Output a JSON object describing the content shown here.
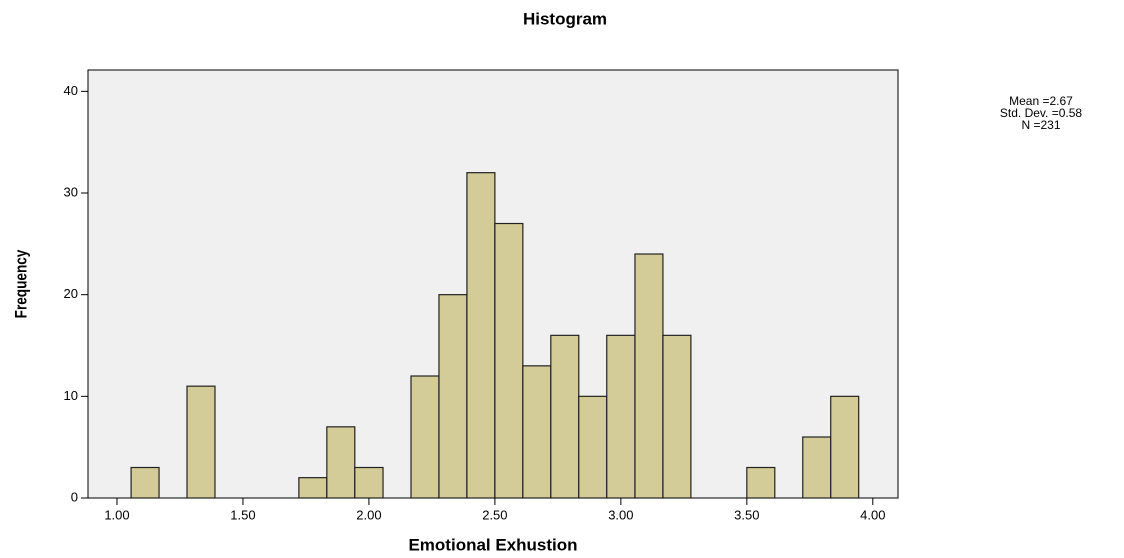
{
  "chart_data": {
    "type": "histogram",
    "title": "Histogram",
    "x_label": "Emotional Exhustion",
    "y_label": "Frequency",
    "annotations": [
      "Mean =2.67",
      "Std. Dev. =0.58",
      "N =231"
    ],
    "bins": [
      1.056,
      1.167,
      1.278,
      1.389,
      1.5,
      1.611,
      1.722,
      1.833,
      1.944,
      2.056,
      2.167,
      2.278,
      2.389,
      2.5,
      2.611,
      2.722,
      2.833,
      2.944,
      3.056,
      3.167,
      3.278,
      3.389,
      3.5,
      3.611,
      3.722,
      3.833,
      3.944
    ],
    "values": [
      3,
      0,
      11,
      0,
      0,
      0,
      2,
      7,
      3,
      0,
      12,
      20,
      32,
      27,
      13,
      16,
      10,
      16,
      24,
      16,
      0,
      0,
      3,
      0,
      6,
      10
    ],
    "color": "#d4cc98",
    "xlim": [
      0.885,
      4.1
    ],
    "xticks": [
      {
        "value": 1,
        "label": "1.00"
      },
      {
        "value": 1.5,
        "label": "1.50"
      },
      {
        "value": 2,
        "label": "2.00"
      },
      {
        "value": 2.5,
        "label": "2.50"
      },
      {
        "value": 3,
        "label": "3.00"
      },
      {
        "value": 3.5,
        "label": "3.50"
      },
      {
        "value": 4,
        "label": "4.00"
      }
    ],
    "ylim": [
      0,
      42.1
    ],
    "yticks": [
      0,
      10,
      20,
      30,
      40
    ],
    "grid": false
  }
}
